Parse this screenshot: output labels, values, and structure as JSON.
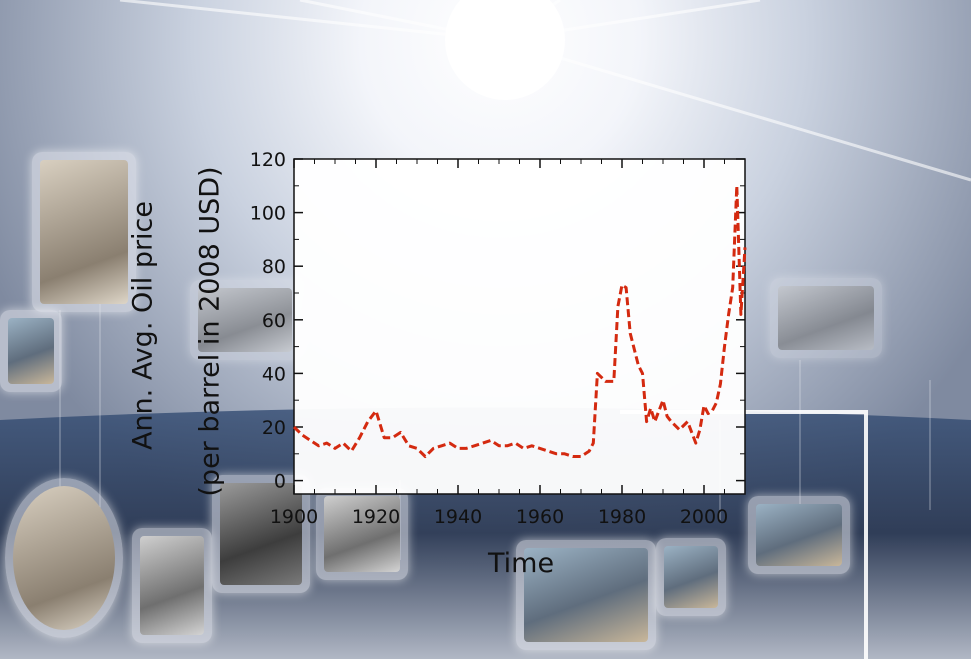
{
  "chart_data": {
    "type": "line",
    "title": "",
    "xlabel": "Time",
    "ylabel_lines": [
      "Ann. Avg. Oil price",
      "(per barrel in 2008 USD)"
    ],
    "xlim": [
      1900,
      2010
    ],
    "ylim": [
      -5,
      120
    ],
    "xticks": [
      1900,
      1920,
      1940,
      1960,
      1980,
      2000
    ],
    "yticks": [
      0,
      20,
      40,
      60,
      80,
      100,
      120
    ],
    "grid": false,
    "legend": false,
    "line_style": "dashed",
    "colors": {
      "line": "#d42a10",
      "axes": "#111111",
      "plot_bg": "#ffffff"
    },
    "series": [
      {
        "x": [
          1900,
          1902,
          1904,
          1906,
          1908,
          1910,
          1912,
          1914,
          1916,
          1918,
          1920,
          1922,
          1924,
          1926,
          1928,
          1930,
          1932,
          1934,
          1936,
          1938,
          1940,
          1942,
          1944,
          1946,
          1948,
          1950,
          1952,
          1954,
          1956,
          1958,
          1960,
          1962,
          1964,
          1966,
          1968,
          1970,
          1972,
          1973,
          1974,
          1976,
          1978,
          1979,
          1980,
          1981,
          1982,
          1984,
          1985,
          1986,
          1987,
          1988,
          1990,
          1991,
          1992,
          1994,
          1996,
          1998,
          1999,
          2000,
          2001,
          2002,
          2003,
          2004,
          2005,
          2006,
          2007,
          2008,
          2009,
          2010
        ],
        "y": [
          20,
          17,
          15,
          13,
          14,
          12,
          14,
          11,
          16,
          22,
          26,
          16,
          16,
          18,
          13,
          12,
          9,
          12,
          13,
          14,
          12,
          12,
          13,
          14,
          15,
          13,
          13,
          14,
          12,
          13,
          12,
          11,
          10,
          10,
          9,
          9,
          11,
          14,
          40,
          37,
          37,
          65,
          73,
          72,
          55,
          43,
          40,
          22,
          27,
          22,
          30,
          24,
          22,
          19,
          22,
          14,
          19,
          28,
          25,
          26,
          29,
          36,
          50,
          62,
          72,
          110,
          62,
          87
        ]
      }
    ]
  },
  "decor": {
    "background_colors": {
      "sky": "#dfe4ee",
      "earth": "#24324d",
      "glow": "#ffffff"
    },
    "photos": [
      "portrait-engraving",
      "gold-object",
      "machine",
      "portrait-oval",
      "portrait-man",
      "portrait-suit",
      "portrait-bearded",
      "lighthouse",
      "person-with-panel",
      "group-photo",
      "sculpture"
    ]
  }
}
